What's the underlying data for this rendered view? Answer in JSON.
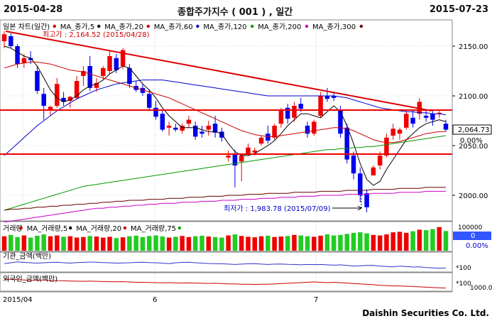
{
  "header": {
    "start_date": "2015-04-28",
    "title": "종합주가지수 ( 001 ) , 일간",
    "end_date": "2015-07-23"
  },
  "price_panel": {
    "legend": [
      {
        "label": "일본 차트(일간)",
        "color": "#cc0000"
      },
      {
        "label": "MA_종가,5",
        "color": "#000000"
      },
      {
        "label": "MA_종가,20",
        "color": "#cc0000"
      },
      {
        "label": "MA_종가,60",
        "color": "#0000cc"
      },
      {
        "label": "MA_종가,120",
        "color": "#009900"
      },
      {
        "label": "MA_종가,200",
        "color": "#cc00cc"
      },
      {
        "label": "MA_종가,300",
        "color": "#660000"
      }
    ],
    "high_annotation": "최고가 : 2,164.52 (2015/04/28)",
    "low_annotation": "최저가 : 1,983.78 (2015/07/09)",
    "current_price": "2,064.73",
    "current_change": "0.00%",
    "y_ticks": [
      "2150.00",
      "2100.00",
      "2050.00",
      "2000.00"
    ]
  },
  "volume_panel": {
    "legend": [
      {
        "label": "거래량",
        "color": "#cc0000"
      },
      {
        "label": "MA_거래량,5",
        "color": "#000000"
      },
      {
        "label": "MA_거래량,20",
        "color": "#cc0000"
      },
      {
        "label": "MA_거래량,75",
        "color": "#00aa00"
      }
    ],
    "y_tick": "100000",
    "current_value": "0",
    "current_change": "0.00%"
  },
  "institution_panel": {
    "legend": "기관_금액(백만)",
    "scale": "*100"
  },
  "foreign_panel": {
    "legend": "외국인_금액(백만)",
    "scale": "*100",
    "y_tick": "1000.00"
  },
  "x_axis": {
    "labels": [
      "2015/04",
      "6",
      "7"
    ]
  },
  "chart_data": {
    "type": "candlestick",
    "xlabel": "",
    "ylabel": "",
    "ylim": [
      1975,
      2175
    ],
    "candles": [
      {
        "o": 2155,
        "h": 2165,
        "l": 2148,
        "c": 2162
      },
      {
        "o": 2160,
        "h": 2163,
        "l": 2148,
        "c": 2150
      },
      {
        "o": 2150,
        "h": 2152,
        "l": 2128,
        "c": 2132
      },
      {
        "o": 2133,
        "h": 2142,
        "l": 2128,
        "c": 2138
      },
      {
        "o": 2138,
        "h": 2145,
        "l": 2132,
        "c": 2136
      },
      {
        "o": 2125,
        "h": 2130,
        "l": 2102,
        "c": 2105
      },
      {
        "o": 2102,
        "h": 2108,
        "l": 2076,
        "c": 2090
      },
      {
        "o": 2085,
        "h": 2090,
        "l": 2080,
        "c": 2089
      },
      {
        "o": 2090,
        "h": 2118,
        "l": 2088,
        "c": 2112
      },
      {
        "o": 2098,
        "h": 2104,
        "l": 2090,
        "c": 2094
      },
      {
        "o": 2095,
        "h": 2100,
        "l": 2088,
        "c": 2099
      },
      {
        "o": 2098,
        "h": 2120,
        "l": 2096,
        "c": 2115
      },
      {
        "o": 2120,
        "h": 2130,
        "l": 2110,
        "c": 2125
      },
      {
        "o": 2130,
        "h": 2140,
        "l": 2105,
        "c": 2108
      },
      {
        "o": 2108,
        "h": 2118,
        "l": 2104,
        "c": 2113
      },
      {
        "o": 2120,
        "h": 2130,
        "l": 2117,
        "c": 2128
      },
      {
        "o": 2125,
        "h": 2145,
        "l": 2122,
        "c": 2140
      },
      {
        "o": 2138,
        "h": 2142,
        "l": 2123,
        "c": 2126
      },
      {
        "o": 2130,
        "h": 2148,
        "l": 2127,
        "c": 2146
      },
      {
        "o": 2128,
        "h": 2132,
        "l": 2108,
        "c": 2112
      },
      {
        "o": 2110,
        "h": 2115,
        "l": 2104,
        "c": 2106
      },
      {
        "o": 2108,
        "h": 2112,
        "l": 2100,
        "c": 2103
      },
      {
        "o": 2102,
        "h": 2106,
        "l": 2086,
        "c": 2088
      },
      {
        "o": 2088,
        "h": 2095,
        "l": 2076,
        "c": 2079
      },
      {
        "o": 2082,
        "h": 2085,
        "l": 2064,
        "c": 2066
      },
      {
        "o": 2068,
        "h": 2074,
        "l": 2060,
        "c": 2070
      },
      {
        "o": 2068,
        "h": 2072,
        "l": 2064,
        "c": 2066
      },
      {
        "o": 2065,
        "h": 2072,
        "l": 2062,
        "c": 2070
      },
      {
        "o": 2072,
        "h": 2080,
        "l": 2068,
        "c": 2076
      },
      {
        "o": 2070,
        "h": 2074,
        "l": 2056,
        "c": 2059
      },
      {
        "o": 2064,
        "h": 2070,
        "l": 2058,
        "c": 2062
      },
      {
        "o": 2066,
        "h": 2075,
        "l": 2060,
        "c": 2070
      },
      {
        "o": 2072,
        "h": 2080,
        "l": 2058,
        "c": 2063
      },
      {
        "o": 2064,
        "h": 2068,
        "l": 2054,
        "c": 2058
      },
      {
        "o": 2038,
        "h": 2045,
        "l": 2034,
        "c": 2040
      },
      {
        "o": 2042,
        "h": 2046,
        "l": 2008,
        "c": 2030
      },
      {
        "o": 2034,
        "h": 2042,
        "l": 2014,
        "c": 2040
      },
      {
        "o": 2042,
        "h": 2052,
        "l": 2040,
        "c": 2048
      },
      {
        "o": 2043,
        "h": 2048,
        "l": 2040,
        "c": 2045
      },
      {
        "o": 2052,
        "h": 2060,
        "l": 2050,
        "c": 2058
      },
      {
        "o": 2062,
        "h": 2070,
        "l": 2052,
        "c": 2055
      },
      {
        "o": 2058,
        "h": 2072,
        "l": 2056,
        "c": 2070
      },
      {
        "o": 2072,
        "h": 2088,
        "l": 2068,
        "c": 2085
      },
      {
        "o": 2088,
        "h": 2092,
        "l": 2072,
        "c": 2077
      },
      {
        "o": 2078,
        "h": 2094,
        "l": 2074,
        "c": 2090
      },
      {
        "o": 2092,
        "h": 2098,
        "l": 2084,
        "c": 2087
      },
      {
        "o": 2070,
        "h": 2074,
        "l": 2058,
        "c": 2062
      },
      {
        "o": 2062,
        "h": 2076,
        "l": 2060,
        "c": 2074
      },
      {
        "o": 2080,
        "h": 2104,
        "l": 2078,
        "c": 2100
      },
      {
        "o": 2100,
        "h": 2108,
        "l": 2094,
        "c": 2097
      },
      {
        "o": 2100,
        "h": 2104,
        "l": 2095,
        "c": 2098
      },
      {
        "o": 2086,
        "h": 2090,
        "l": 2058,
        "c": 2062
      },
      {
        "o": 2068,
        "h": 2072,
        "l": 2032,
        "c": 2036
      },
      {
        "o": 2040,
        "h": 2044,
        "l": 2016,
        "c": 2022
      },
      {
        "o": 2022,
        "h": 2028,
        "l": 1993,
        "c": 2000
      },
      {
        "o": 2002,
        "h": 2006,
        "l": 1983,
        "c": 1988
      },
      {
        "o": 2020,
        "h": 2030,
        "l": 2020,
        "c": 2028
      },
      {
        "o": 2030,
        "h": 2044,
        "l": 2026,
        "c": 2040
      },
      {
        "o": 2040,
        "h": 2062,
        "l": 2038,
        "c": 2058
      },
      {
        "o": 2060,
        "h": 2072,
        "l": 2056,
        "c": 2067
      },
      {
        "o": 2062,
        "h": 2068,
        "l": 2056,
        "c": 2066
      },
      {
        "o": 2068,
        "h": 2086,
        "l": 2066,
        "c": 2082
      },
      {
        "o": 2078,
        "h": 2086,
        "l": 2068,
        "c": 2072
      },
      {
        "o": 2082,
        "h": 2098,
        "l": 2076,
        "c": 2094
      },
      {
        "o": 2080,
        "h": 2086,
        "l": 2074,
        "c": 2078
      },
      {
        "o": 2082,
        "h": 2086,
        "l": 2070,
        "c": 2076
      },
      {
        "o": 2082,
        "h": 2086,
        "l": 2078,
        "c": 2083
      },
      {
        "o": 2072,
        "h": 2076,
        "l": 2064,
        "c": 2066
      }
    ],
    "ma5": [
      2150,
      2148,
      2144,
      2140,
      2138,
      2130,
      2118,
      2106,
      2098,
      2094,
      2096,
      2100,
      2106,
      2110,
      2112,
      2116,
      2122,
      2126,
      2130,
      2128,
      2120,
      2112,
      2106,
      2098,
      2088,
      2080,
      2074,
      2068,
      2068,
      2068,
      2066,
      2064,
      2064,
      2062,
      2052,
      2044,
      2040,
      2040,
      2042,
      2046,
      2050,
      2055,
      2062,
      2070,
      2076,
      2082,
      2082,
      2080,
      2078,
      2084,
      2090,
      2084,
      2070,
      2052,
      2032,
      2016,
      2010,
      2014,
      2026,
      2036,
      2046,
      2056,
      2062,
      2068,
      2072,
      2074,
      2076,
      2074
    ],
    "ma20": [
      2128,
      2130,
      2132,
      2133,
      2134,
      2134,
      2133,
      2132,
      2130,
      2128,
      2126,
      2125,
      2124,
      2122,
      2120,
      2118,
      2116,
      2114,
      2112,
      2110,
      2108,
      2106,
      2104,
      2102,
      2100,
      2098,
      2095,
      2092,
      2089,
      2086,
      2083,
      2080,
      2077,
      2074,
      2071,
      2068,
      2065,
      2063,
      2061,
      2060,
      2059,
      2059,
      2060,
      2061,
      2062,
      2063,
      2064,
      2065,
      2066,
      2067,
      2068,
      2068,
      2067,
      2065,
      2062,
      2059,
      2056,
      2054,
      2053,
      2053,
      2054,
      2056,
      2058,
      2060,
      2062,
      2063,
      2064,
      2064
    ],
    "ma60": [
      2040,
      2046,
      2052,
      2058,
      2064,
      2070,
      2075,
      2080,
      2085,
      2089,
      2093,
      2097,
      2100,
      2103,
      2106,
      2108,
      2110,
      2112,
      2113,
      2114,
      2115,
      2116,
      2116,
      2116,
      2116,
      2115,
      2114,
      2113,
      2112,
      2111,
      2110,
      2109,
      2108,
      2107,
      2106,
      2105,
      2104,
      2103,
      2102,
      2101,
      2100,
      2100,
      2100,
      2100,
      2100,
      2100,
      2100,
      2100,
      2100,
      2100,
      2100,
      2099,
      2098,
      2096,
      2094,
      2092,
      2090,
      2088,
      2087,
      2086,
      2085,
      2084,
      2084,
      2083,
      2083,
      2082,
      2082,
      2081
    ],
    "ma120": [
      1985,
      1987,
      1989,
      1991,
      1993,
      1995,
      1997,
      1999,
      2001,
      2003,
      2005,
      2007,
      2009,
      2010,
      2011,
      2012,
      2013,
      2014,
      2015,
      2016,
      2017,
      2018,
      2019,
      2020,
      2021,
      2022,
      2023,
      2024,
      2025,
      2026,
      2027,
      2028,
      2029,
      2030,
      2031,
      2032,
      2033,
      2034,
      2035,
      2036,
      2037,
      2038,
      2039,
      2040,
      2041,
      2042,
      2043,
      2044,
      2045,
      2046,
      2046,
      2047,
      2047,
      2048,
      2048,
      2049,
      2049,
      2050,
      2051,
      2052,
      2053,
      2054,
      2055,
      2056,
      2057,
      2058,
      2059,
      2060
    ],
    "ma200": [
      1973,
      1974,
      1975,
      1976,
      1977,
      1978,
      1979,
      1980,
      1981,
      1982,
      1983,
      1984,
      1985,
      1986,
      1987,
      1987,
      1988,
      1988,
      1989,
      1989,
      1990,
      1990,
      1991,
      1991,
      1992,
      1992,
      1992,
      1993,
      1993,
      1993,
      1994,
      1994,
      1994,
      1995,
      1995,
      1995,
      1996,
      1996,
      1996,
      1997,
      1997,
      1997,
      1998,
      1998,
      1998,
      1999,
      1999,
      1999,
      2000,
      2000,
      2000,
      2000,
      2001,
      2001,
      2001,
      2001,
      2002,
      2002,
      2002,
      2002,
      2003,
      2003,
      2003,
      2003,
      2004,
      2004,
      2004,
      2004
    ],
    "ma300": [
      1985,
      1986,
      1986,
      1987,
      1987,
      1988,
      1988,
      1989,
      1989,
      1990,
      1990,
      1991,
      1991,
      1992,
      1992,
      1993,
      1993,
      1994,
      1994,
      1995,
      1995,
      1995,
      1996,
      1996,
      1996,
      1997,
      1997,
      1997,
      1998,
      1998,
      1998,
      1999,
      1999,
      1999,
      2000,
      2000,
      2000,
      2001,
      2001,
      2001,
      2002,
      2002,
      2002,
      2002,
      2003,
      2003,
      2003,
      2003,
      2004,
      2004,
      2004,
      2004,
      2005,
      2005,
      2005,
      2005,
      2006,
      2006,
      2006,
      2006,
      2007,
      2007,
      2007,
      2007,
      2008,
      2008,
      2008,
      2008
    ],
    "volume": [
      55,
      60,
      52,
      58,
      50,
      57,
      62,
      55,
      58,
      53,
      55,
      50,
      52,
      56,
      54,
      50,
      53,
      48,
      51,
      55,
      57,
      52,
      56,
      58,
      54,
      50,
      53,
      56,
      52,
      55,
      57,
      54,
      52,
      50,
      58,
      62,
      56,
      53,
      51,
      55,
      57,
      52,
      54,
      56,
      60,
      58,
      55,
      53,
      57,
      62,
      58,
      60,
      64,
      68,
      70,
      66,
      60,
      58,
      62,
      70,
      72,
      68,
      74,
      80,
      78,
      82,
      90,
      75
    ],
    "volume_up": [
      true,
      false,
      false,
      true,
      false,
      false,
      false,
      true,
      true,
      false,
      true,
      true,
      true,
      false,
      true,
      true,
      true,
      false,
      true,
      false,
      false,
      false,
      false,
      false,
      false,
      true,
      false,
      true,
      true,
      false,
      false,
      true,
      false,
      false,
      true,
      false,
      true,
      true,
      true,
      true,
      false,
      true,
      true,
      false,
      true,
      false,
      false,
      true,
      true,
      false,
      false,
      false,
      false,
      false,
      false,
      false,
      true,
      true,
      true,
      true,
      true,
      true,
      false,
      true,
      false,
      false,
      true,
      false
    ],
    "institution": [
      0.55,
      0.5,
      0.45,
      0.48,
      0.5,
      0.52,
      0.5,
      0.48,
      0.47,
      0.5,
      0.52,
      0.49,
      0.48,
      0.46,
      0.47,
      0.49,
      0.5,
      0.52,
      0.51,
      0.5,
      0.48,
      0.47,
      0.49,
      0.5,
      0.52,
      0.55,
      0.5,
      0.48,
      0.47,
      0.5,
      0.52,
      0.54,
      0.55,
      0.56,
      0.58,
      0.6,
      0.58,
      0.56,
      0.55,
      0.58,
      0.6,
      0.58,
      0.57,
      0.59,
      0.6,
      0.62,
      0.6,
      0.61,
      0.6,
      0.62,
      0.64,
      0.62,
      0.66,
      0.7,
      0.68,
      0.66,
      0.65,
      0.7,
      0.72,
      0.74,
      0.7,
      0.72,
      0.75,
      0.74,
      0.78,
      0.8,
      0.82,
      0.8
    ],
    "foreign": [
      0.3,
      0.32,
      0.34,
      0.36,
      0.38,
      0.37,
      0.36,
      0.38,
      0.4,
      0.41,
      0.42,
      0.43,
      0.44,
      0.43,
      0.44,
      0.45,
      0.46,
      0.47,
      0.46,
      0.48,
      0.5,
      0.5,
      0.51,
      0.52,
      0.53,
      0.52,
      0.54,
      0.55,
      0.54,
      0.55,
      0.56,
      0.57,
      0.56,
      0.58,
      0.6,
      0.6,
      0.62,
      0.62,
      0.63,
      0.62,
      0.62,
      0.6,
      0.58,
      0.56,
      0.54,
      0.52,
      0.5,
      0.48,
      0.5,
      0.52,
      0.5,
      0.52,
      0.55,
      0.58,
      0.6,
      0.62,
      0.65,
      0.68,
      0.7,
      0.72,
      0.72,
      0.74,
      0.76,
      0.78,
      0.8,
      0.82,
      0.84,
      0.85
    ]
  }
}
